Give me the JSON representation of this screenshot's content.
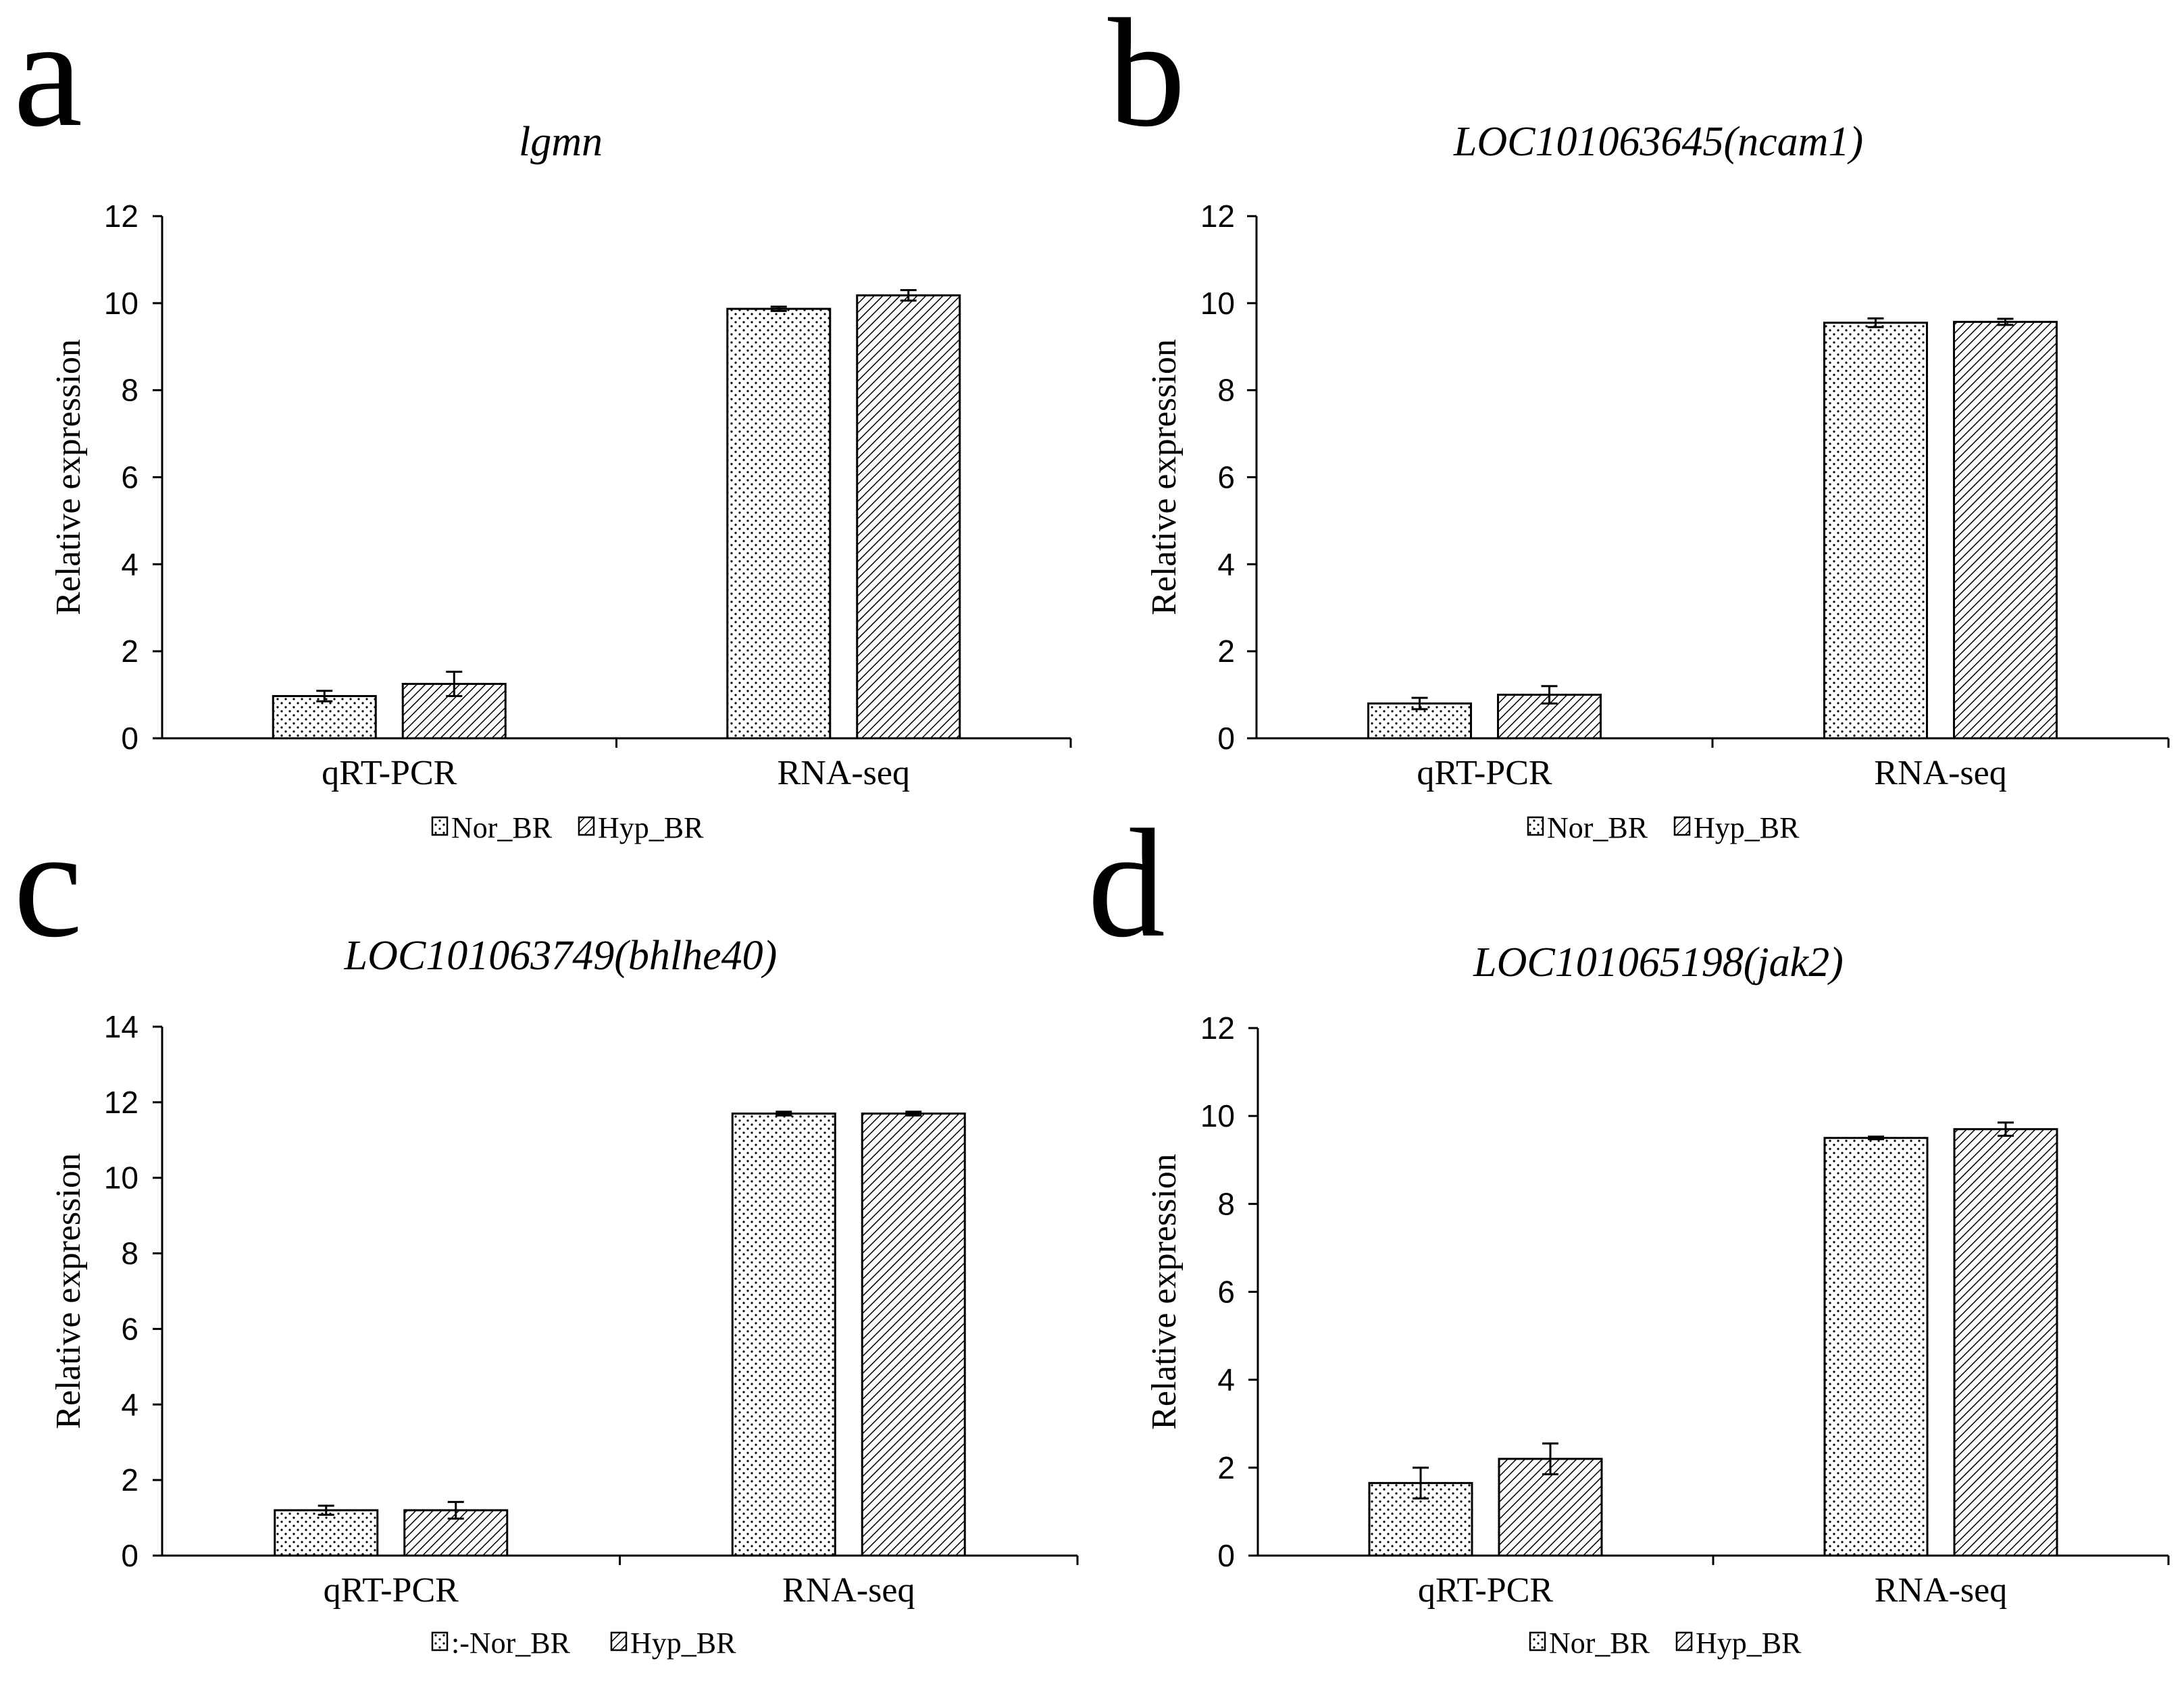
{
  "chart_data": [
    {
      "type": "bar",
      "panel": "a",
      "title": "lgmn",
      "ylabel": "Relative expression",
      "xlabel": "",
      "ylim": [
        0,
        12
      ],
      "yticks": [
        0,
        2,
        4,
        6,
        8,
        10,
        12
      ],
      "categories": [
        "qRT-PCR",
        "RNA-seq"
      ],
      "series": [
        {
          "name": "Nor_BR",
          "values": [
            0.97,
            9.87
          ],
          "errors": [
            0.12,
            0.05
          ]
        },
        {
          "name": "Hyp_BR",
          "values": [
            1.25,
            10.18
          ],
          "errors": [
            0.28,
            0.12
          ]
        }
      ],
      "legend": {
        "position": "bottom",
        "items": [
          "Nor_BR",
          "Hyp_BR"
        ]
      },
      "grid": false
    },
    {
      "type": "bar",
      "panel": "b",
      "title": "LOC101063645(ncam1)",
      "ylabel": "Relative expression",
      "xlabel": "",
      "ylim": [
        0,
        12
      ],
      "yticks": [
        0,
        2,
        4,
        6,
        8,
        10,
        12
      ],
      "categories": [
        "qRT-PCR",
        "RNA-seq"
      ],
      "series": [
        {
          "name": "Nor_BR",
          "values": [
            0.8,
            9.55
          ],
          "errors": [
            0.13,
            0.1
          ]
        },
        {
          "name": "Hyp_BR",
          "values": [
            1.0,
            9.57
          ],
          "errors": [
            0.2,
            0.07
          ]
        }
      ],
      "legend": {
        "position": "bottom",
        "items": [
          "Nor_BR",
          "Hyp_BR"
        ]
      },
      "grid": false
    },
    {
      "type": "bar",
      "panel": "c",
      "title": "LOC101063749(bhlhe40)",
      "ylabel": "Relative expression",
      "xlabel": "",
      "ylim": [
        0,
        14
      ],
      "yticks": [
        0,
        2,
        4,
        6,
        8,
        10,
        12,
        14
      ],
      "categories": [
        "qRT-PCR",
        "RNA-seq"
      ],
      "series": [
        {
          "name": "Nor_BR",
          "values": [
            1.2,
            11.7
          ],
          "errors": [
            0.12,
            0.05
          ]
        },
        {
          "name": "Hyp_BR",
          "values": [
            1.2,
            11.7
          ],
          "errors": [
            0.22,
            0.05
          ]
        }
      ],
      "legend": {
        "position": "bottom",
        "items": [
          ":-Nor_BR",
          "Hyp_BR"
        ]
      },
      "grid": false
    },
    {
      "type": "bar",
      "panel": "d",
      "title": "LOC101065198(jak2)",
      "ylabel": "Relative expression",
      "xlabel": "",
      "ylim": [
        0,
        12
      ],
      "yticks": [
        0,
        2,
        4,
        6,
        8,
        10,
        12
      ],
      "categories": [
        "qRT-PCR",
        "RNA-seq"
      ],
      "series": [
        {
          "name": "Nor_BR",
          "values": [
            1.65,
            9.5
          ],
          "errors": [
            0.35,
            0.03
          ]
        },
        {
          "name": "Hyp_BR",
          "values": [
            2.2,
            9.7
          ],
          "errors": [
            0.35,
            0.15
          ]
        }
      ],
      "legend": {
        "position": "bottom",
        "items": [
          "Nor_BR",
          "Hyp_BR"
        ]
      },
      "grid": false
    }
  ]
}
